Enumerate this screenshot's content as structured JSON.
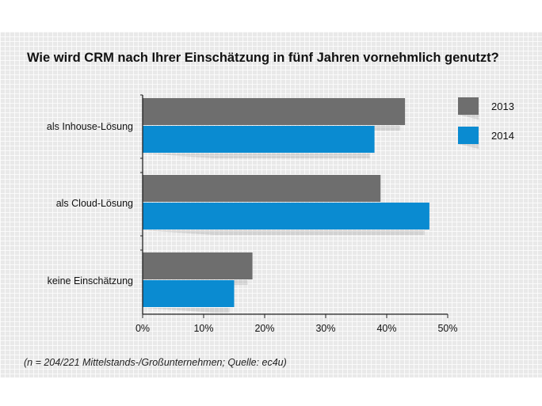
{
  "chart_data": {
    "type": "bar",
    "orientation": "horizontal",
    "title": "Wie wird CRM nach Ihrer Einschätzung in fünf Jahren vornehmlich genutzt?",
    "categories": [
      "als Inhouse-Lösung",
      "als Cloud-Lösung",
      "keine Einschätzung"
    ],
    "series": [
      {
        "name": "2013",
        "color": "#6e6e6e",
        "values": [
          43,
          39,
          18
        ]
      },
      {
        "name": "2014",
        "color": "#0a8bd1",
        "values": [
          38,
          47,
          15
        ]
      }
    ],
    "x_ticks": [
      "0%",
      "10%",
      "20%",
      "30%",
      "40%",
      "50%"
    ],
    "xlim": [
      0,
      50
    ],
    "unit": "%",
    "legend_position": "right",
    "grid": false,
    "footnote": "(n = 204/221 Mittelstands-/Großunternehmen; Quelle: ec4u)"
  }
}
